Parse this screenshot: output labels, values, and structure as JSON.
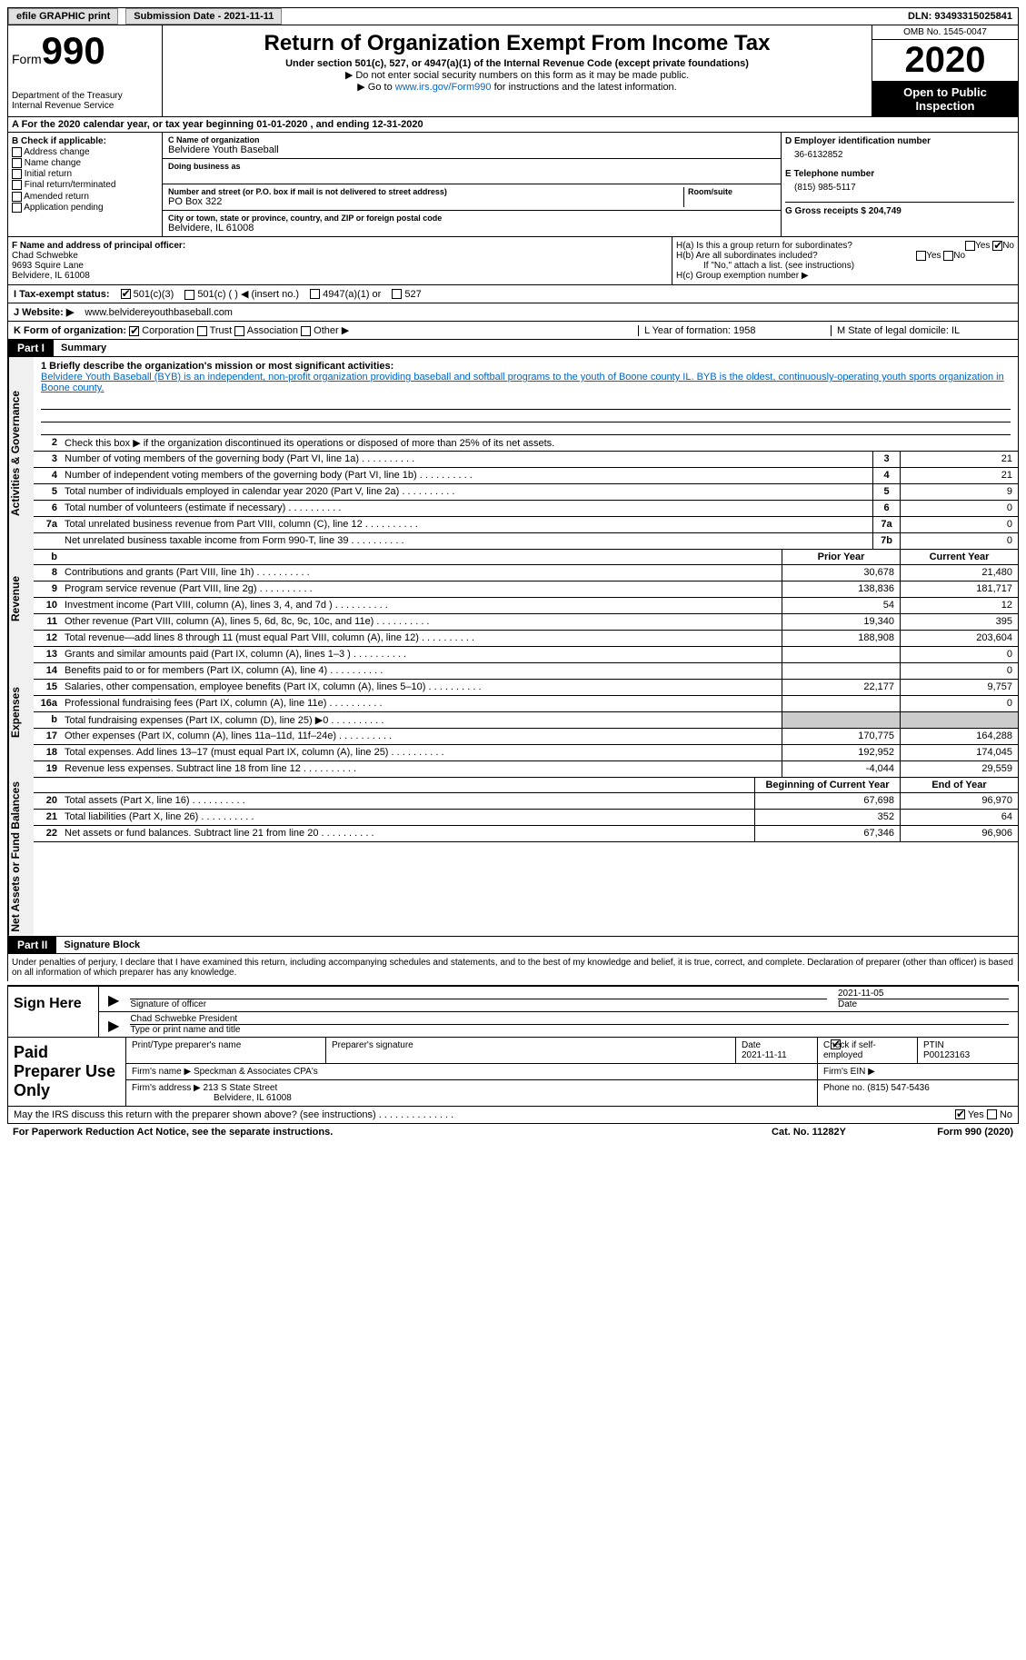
{
  "topbar": {
    "efile": "efile GRAPHIC print",
    "submission_label": "Submission Date - 2021-11-11",
    "dln_label": "DLN: 93493315025841"
  },
  "header": {
    "form_word": "Form",
    "form_num": "990",
    "dept": "Department of the Treasury\nInternal Revenue Service",
    "title": "Return of Organization Exempt From Income Tax",
    "subtitle": "Under section 501(c), 527, or 4947(a)(1) of the Internal Revenue Code (except private foundations)",
    "note1": "▶ Do not enter social security numbers on this form as it may be made public.",
    "note2_pre": "▶ Go to ",
    "note2_link": "www.irs.gov/Form990",
    "note2_post": " for instructions and the latest information.",
    "omb": "OMB No. 1545-0047",
    "year": "2020",
    "inspection": "Open to Public Inspection"
  },
  "period": "A For the 2020 calendar year, or tax year beginning 01-01-2020    , and ending 12-31-2020",
  "blockB": {
    "label": "B Check if applicable:",
    "opts": [
      "Address change",
      "Name change",
      "Initial return",
      "Final return/terminated",
      "Amended return",
      "Application pending"
    ]
  },
  "blockC": {
    "name_label": "C Name of organization",
    "name": "Belvidere Youth Baseball",
    "dba_label": "Doing business as",
    "addr_label": "Number and street (or P.O. box if mail is not delivered to street address)",
    "room_label": "Room/suite",
    "addr": "PO Box 322",
    "city_label": "City or town, state or province, country, and ZIP or foreign postal code",
    "city": "Belvidere, IL  61008"
  },
  "blockD": {
    "ein_label": "D Employer identification number",
    "ein": "36-6132852",
    "phone_label": "E Telephone number",
    "phone": "(815) 985-5117",
    "gross_label": "G Gross receipts $ 204,749"
  },
  "blockF": {
    "label": "F  Name and address of principal officer:",
    "name": "Chad Schwebke",
    "addr1": "9693 Squire Lane",
    "addr2": "Belvidere, IL  61008"
  },
  "blockH": {
    "a": "H(a)  Is this a group return for subordinates?",
    "b": "H(b)  Are all subordinates included?",
    "b_note": "If \"No,\" attach a list. (see instructions)",
    "c": "H(c)  Group exemption number ▶",
    "yes": "Yes",
    "no": "No"
  },
  "statusI": {
    "label": "I   Tax-exempt status:",
    "o1": "501(c)(3)",
    "o2": "501(c) (  ) ◀ (insert no.)",
    "o3": "4947(a)(1) or",
    "o4": "527"
  },
  "website": {
    "label": "J  Website: ▶",
    "val": "www.belvidereyouthbaseball.com"
  },
  "blockK": {
    "label": "K Form of organization:",
    "opts": [
      "Corporation",
      "Trust",
      "Association",
      "Other ▶"
    ],
    "l": "L Year of formation: 1958",
    "m": "M State of legal domicile: IL"
  },
  "part1": {
    "header": "Part I",
    "title": "Summary",
    "mission_label": "1   Briefly describe the organization's mission or most significant activities:",
    "mission": "Belvidere Youth Baseball (BYB) is an independent, non-profit organization providing baseball and softball programs to the youth of Boone county IL. BYB is the oldest, continuously-operating youth sports organization in Boone county.",
    "l2": "Check this box ▶    if the organization discontinued its operations or disposed of more than 25% of its net assets."
  },
  "gov_lines": [
    {
      "n": "3",
      "t": "Number of voting members of the governing body (Part VI, line 1a)",
      "b": "3",
      "v": "21"
    },
    {
      "n": "4",
      "t": "Number of independent voting members of the governing body (Part VI, line 1b)",
      "b": "4",
      "v": "21"
    },
    {
      "n": "5",
      "t": "Total number of individuals employed in calendar year 2020 (Part V, line 2a)",
      "b": "5",
      "v": "9"
    },
    {
      "n": "6",
      "t": "Total number of volunteers (estimate if necessary)",
      "b": "6",
      "v": "0"
    },
    {
      "n": "7a",
      "t": "Total unrelated business revenue from Part VIII, column (C), line 12",
      "b": "7a",
      "v": "0"
    },
    {
      "n": "",
      "t": "Net unrelated business taxable income from Form 990-T, line 39",
      "b": "7b",
      "v": "0"
    }
  ],
  "rev_hdr": {
    "b": "b",
    "py": "Prior Year",
    "cy": "Current Year"
  },
  "rev_lines": [
    {
      "n": "8",
      "t": "Contributions and grants (Part VIII, line 1h)",
      "py": "30,678",
      "cy": "21,480"
    },
    {
      "n": "9",
      "t": "Program service revenue (Part VIII, line 2g)",
      "py": "138,836",
      "cy": "181,717"
    },
    {
      "n": "10",
      "t": "Investment income (Part VIII, column (A), lines 3, 4, and 7d )",
      "py": "54",
      "cy": "12"
    },
    {
      "n": "11",
      "t": "Other revenue (Part VIII, column (A), lines 5, 6d, 8c, 9c, 10c, and 11e)",
      "py": "19,340",
      "cy": "395"
    },
    {
      "n": "12",
      "t": "Total revenue—add lines 8 through 11 (must equal Part VIII, column (A), line 12)",
      "py": "188,908",
      "cy": "203,604"
    }
  ],
  "exp_lines": [
    {
      "n": "13",
      "t": "Grants and similar amounts paid (Part IX, column (A), lines 1–3 )",
      "py": "",
      "cy": "0"
    },
    {
      "n": "14",
      "t": "Benefits paid to or for members (Part IX, column (A), line 4)",
      "py": "",
      "cy": "0"
    },
    {
      "n": "15",
      "t": "Salaries, other compensation, employee benefits (Part IX, column (A), lines 5–10)",
      "py": "22,177",
      "cy": "9,757"
    },
    {
      "n": "16a",
      "t": "Professional fundraising fees (Part IX, column (A), line 11e)",
      "py": "",
      "cy": "0"
    },
    {
      "n": "b",
      "t": "Total fundraising expenses (Part IX, column (D), line 25) ▶0",
      "py": "shaded",
      "cy": "shaded"
    },
    {
      "n": "17",
      "t": "Other expenses (Part IX, column (A), lines 11a–11d, 11f–24e)",
      "py": "170,775",
      "cy": "164,288"
    },
    {
      "n": "18",
      "t": "Total expenses. Add lines 13–17 (must equal Part IX, column (A), line 25)",
      "py": "192,952",
      "cy": "174,045"
    },
    {
      "n": "19",
      "t": "Revenue less expenses. Subtract line 18 from line 12",
      "py": "-4,044",
      "cy": "29,559"
    }
  ],
  "na_hdr": {
    "py": "Beginning of Current Year",
    "cy": "End of Year"
  },
  "na_lines": [
    {
      "n": "20",
      "t": "Total assets (Part X, line 16)",
      "py": "67,698",
      "cy": "96,970"
    },
    {
      "n": "21",
      "t": "Total liabilities (Part X, line 26)",
      "py": "352",
      "cy": "64"
    },
    {
      "n": "22",
      "t": "Net assets or fund balances. Subtract line 21 from line 20",
      "py": "67,346",
      "cy": "96,906"
    }
  ],
  "part2": {
    "header": "Part II",
    "title": "Signature Block",
    "note": "Under penalties of perjury, I declare that I have examined this return, including accompanying schedules and statements, and to the best of my knowledge and belief, it is true, correct, and complete. Declaration of preparer (other than officer) is based on all information of which preparer has any knowledge."
  },
  "sign": {
    "label": "Sign Here",
    "sig_label": "Signature of officer",
    "date": "2021-11-05",
    "date_label": "Date",
    "name": "Chad Schwebke  President",
    "name_label": "Type or print name and title"
  },
  "preparer": {
    "label": "Paid Preparer Use Only",
    "name_label": "Print/Type preparer's name",
    "sig_label": "Preparer's signature",
    "date_label": "Date",
    "date": "2021-11-11",
    "check_label": "Check        if self-employed",
    "ptin_label": "PTIN",
    "ptin": "P00123163",
    "firm_name_label": "Firm's name    ▶",
    "firm_name": "Speckman & Associates CPA's",
    "firm_ein_label": "Firm's EIN ▶",
    "firm_addr_label": "Firm's address ▶",
    "firm_addr1": "213 S State Street",
    "firm_addr2": "Belvidere, IL  61008",
    "firm_phone_label": "Phone no. (815) 547-5436"
  },
  "footer": {
    "discuss": "May the IRS discuss this return with the preparer shown above? (see instructions)",
    "yes": "Yes",
    "no": "No",
    "pra": "For Paperwork Reduction Act Notice, see the separate instructions.",
    "cat": "Cat. No. 11282Y",
    "form": "Form 990 (2020)"
  },
  "side": {
    "gov": "Activities & Governance",
    "rev": "Revenue",
    "exp": "Expenses",
    "na": "Net Assets or Fund Balances"
  }
}
